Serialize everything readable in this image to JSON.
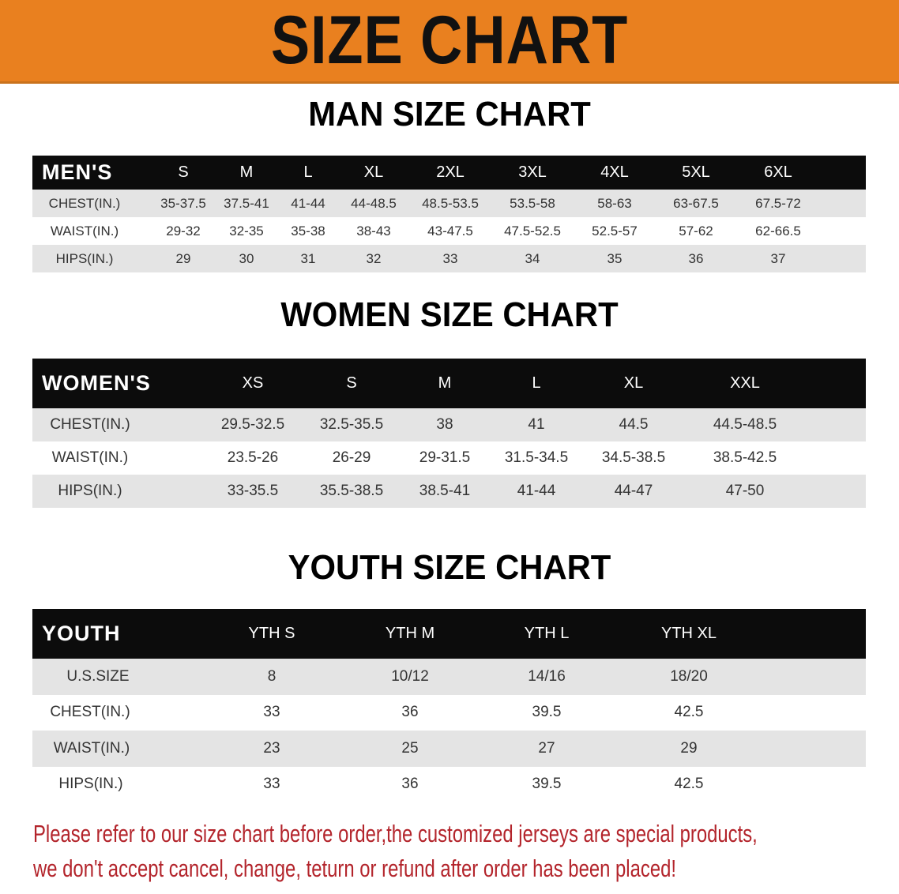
{
  "banner": {
    "title": "SIZE CHART",
    "color": "#e9801f"
  },
  "chart_data": [
    {
      "type": "table",
      "title": "MAN SIZE CHART",
      "columns": [
        "MEN'S",
        "S",
        "M",
        "L",
        "XL",
        "2XL",
        "3XL",
        "4XL",
        "5XL",
        "6XL"
      ],
      "rows": [
        [
          "CHEST(IN.)",
          "35-37.5",
          "37.5-41",
          "41-44",
          "44-48.5",
          "48.5-53.5",
          "53.5-58",
          "58-63",
          "63-67.5",
          "67.5-72"
        ],
        [
          "WAIST(IN.)",
          "29-32",
          "32-35",
          "35-38",
          "38-43",
          "43-47.5",
          "47.5-52.5",
          "52.5-57",
          "57-62",
          "62-66.5"
        ],
        [
          "HIPS(IN.)",
          "29",
          "30",
          "31",
          "32",
          "33",
          "34",
          "35",
          "36",
          "37"
        ]
      ]
    },
    {
      "type": "table",
      "title": "WOMEN SIZE CHART",
      "columns": [
        "WOMEN'S",
        "XS",
        "S",
        "M",
        "L",
        "XL",
        "XXL"
      ],
      "rows": [
        [
          "CHEST(IN.)",
          "29.5-32.5",
          "32.5-35.5",
          "38",
          "41",
          "44.5",
          "44.5-48.5"
        ],
        [
          "WAIST(IN.)",
          "23.5-26",
          "26-29",
          "29-31.5",
          "31.5-34.5",
          "34.5-38.5",
          "38.5-42.5"
        ],
        [
          "HIPS(IN.)",
          "33-35.5",
          "35.5-38.5",
          "38.5-41",
          "41-44",
          "44-47",
          "47-50"
        ]
      ]
    },
    {
      "type": "table",
      "title": "YOUTH SIZE CHART",
      "columns": [
        "YOUTH",
        "YTH S",
        "YTH M",
        "YTH L",
        "YTH XL"
      ],
      "rows": [
        [
          "U.S.SIZE",
          "8",
          "10/12",
          "14/16",
          "18/20"
        ],
        [
          "CHEST(IN.)",
          "33",
          "36",
          "39.5",
          "42.5"
        ],
        [
          "WAIST(IN.)",
          "23",
          "25",
          "27",
          "29"
        ],
        [
          "HIPS(IN.)",
          "33",
          "36",
          "39.5",
          "42.5"
        ]
      ]
    }
  ],
  "note": {
    "line1": "Please refer to our size chart before order,the customized jerseys are special products,",
    "line2": "we don't accept cancel, change, teturn or refund after order has been placed!",
    "color": "#b3242b"
  }
}
